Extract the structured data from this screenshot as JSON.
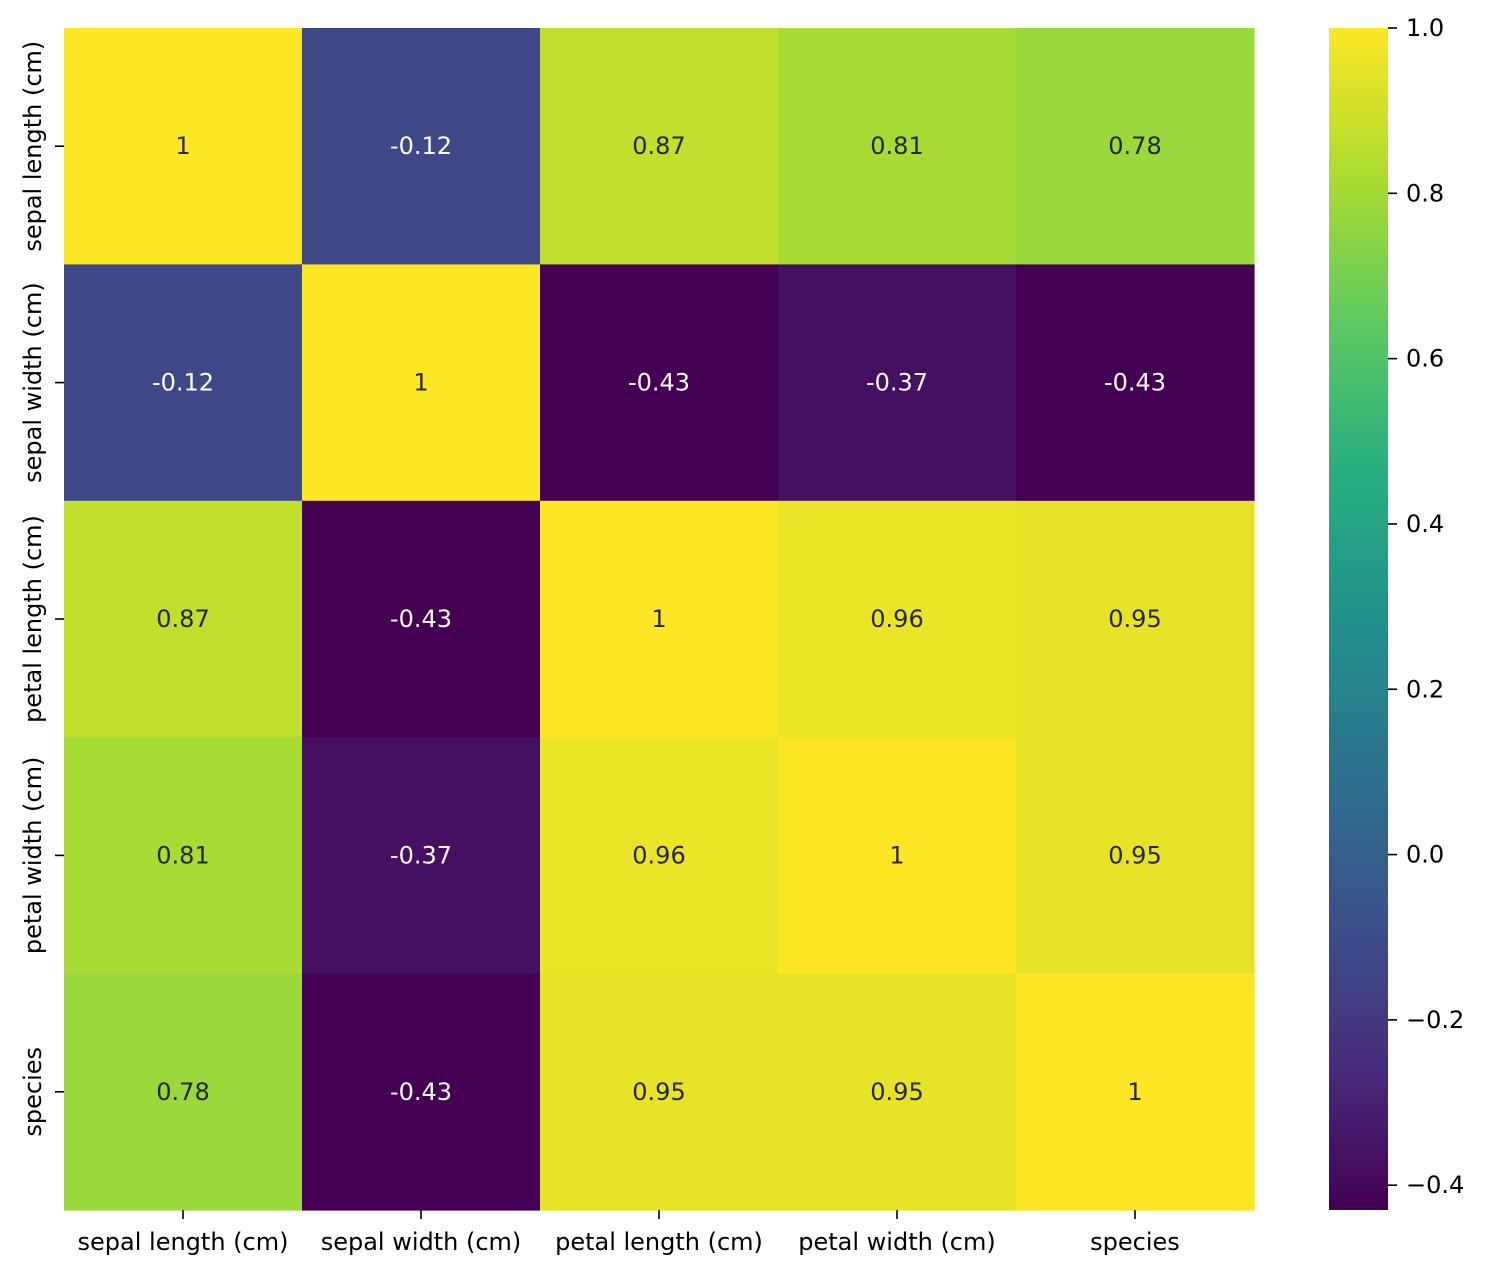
{
  "chart_data": {
    "type": "heatmap",
    "title": "",
    "xlabel": "",
    "ylabel": "",
    "x_labels": [
      "sepal length (cm)",
      "sepal width (cm)",
      "petal length (cm)",
      "petal width (cm)",
      "species"
    ],
    "y_labels": [
      "sepal length (cm)",
      "sepal width (cm)",
      "petal length (cm)",
      "petal width (cm)",
      "species"
    ],
    "values": [
      [
        1.0,
        -0.12,
        0.87,
        0.81,
        0.78
      ],
      [
        -0.12,
        1.0,
        -0.43,
        -0.37,
        -0.43
      ],
      [
        0.87,
        -0.43,
        1.0,
        0.96,
        0.95
      ],
      [
        0.81,
        -0.37,
        0.96,
        1.0,
        0.95
      ],
      [
        0.78,
        -0.43,
        0.95,
        0.95,
        1.0
      ]
    ],
    "annotations": [
      [
        "1",
        "-0.12",
        "0.87",
        "0.81",
        "0.78"
      ],
      [
        "-0.12",
        "1",
        "-0.43",
        "-0.37",
        "-0.43"
      ],
      [
        "0.87",
        "-0.43",
        "1",
        "0.96",
        "0.95"
      ],
      [
        "0.81",
        "-0.37",
        "0.96",
        "1",
        "0.95"
      ],
      [
        "0.78",
        "-0.43",
        "0.95",
        "0.95",
        "1"
      ]
    ],
    "colormap": "viridis",
    "colorbar": {
      "range": [
        -0.43,
        1.0
      ],
      "ticks": [
        -0.4,
        -0.2,
        0.0,
        0.2,
        0.4,
        0.6,
        0.8,
        1.0
      ],
      "tick_labels": [
        "−0.4",
        "−0.2",
        "0.0",
        "0.2",
        "0.4",
        "0.6",
        "0.8",
        "1.0"
      ]
    },
    "grid": false,
    "legend": "colorbar right"
  }
}
